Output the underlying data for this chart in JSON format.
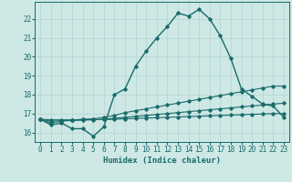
{
  "xlabel": "Humidex (Indice chaleur)",
  "background_color": "#cde8e5",
  "grid_color": "#b8d8d5",
  "line_color": "#1a6b6b",
  "xlim": [
    -0.5,
    23.5
  ],
  "ylim": [
    15.5,
    22.9
  ],
  "yticks": [
    16,
    17,
    18,
    19,
    20,
    21,
    22
  ],
  "xticks": [
    0,
    1,
    2,
    3,
    4,
    5,
    6,
    7,
    8,
    9,
    10,
    11,
    12,
    13,
    14,
    15,
    16,
    17,
    18,
    19,
    20,
    21,
    22,
    23
  ],
  "main_x": [
    0,
    1,
    2,
    3,
    4,
    5,
    6,
    7,
    8,
    9,
    10,
    11,
    12,
    13,
    14,
    15,
    16,
    17,
    18,
    19,
    20,
    21,
    22,
    23
  ],
  "main_y": [
    16.7,
    16.4,
    16.5,
    16.2,
    16.2,
    15.8,
    16.3,
    18.0,
    18.3,
    19.5,
    20.3,
    21.0,
    21.6,
    22.3,
    22.15,
    22.5,
    22.0,
    21.1,
    19.9,
    18.3,
    17.9,
    17.5,
    17.4,
    16.8
  ],
  "line2_x": [
    0,
    1,
    2,
    3,
    4,
    5,
    6,
    7,
    8,
    9,
    10,
    11,
    12,
    13,
    14,
    15,
    16,
    17,
    18,
    19,
    20,
    21,
    22,
    23
  ],
  "line2_y": [
    16.7,
    16.5,
    16.6,
    16.65,
    16.7,
    16.72,
    16.8,
    16.9,
    17.05,
    17.15,
    17.25,
    17.35,
    17.45,
    17.55,
    17.65,
    17.75,
    17.85,
    17.95,
    18.05,
    18.15,
    18.25,
    18.35,
    18.45,
    18.45
  ],
  "line3_x": [
    0,
    1,
    2,
    3,
    4,
    5,
    6,
    7,
    8,
    9,
    10,
    11,
    12,
    13,
    14,
    15,
    16,
    17,
    18,
    19,
    20,
    21,
    22,
    23
  ],
  "line3_y": [
    16.7,
    16.6,
    16.62,
    16.63,
    16.65,
    16.67,
    16.7,
    16.75,
    16.8,
    16.85,
    16.9,
    16.95,
    17.0,
    17.05,
    17.1,
    17.15,
    17.2,
    17.25,
    17.3,
    17.35,
    17.4,
    17.45,
    17.5,
    17.55
  ],
  "line4_x": [
    0,
    1,
    2,
    3,
    4,
    5,
    6,
    7,
    8,
    9,
    10,
    11,
    12,
    13,
    14,
    15,
    16,
    17,
    18,
    19,
    20,
    21,
    22,
    23
  ],
  "line4_y": [
    16.7,
    16.67,
    16.67,
    16.67,
    16.68,
    16.68,
    16.68,
    16.7,
    16.72,
    16.74,
    16.76,
    16.78,
    16.8,
    16.82,
    16.84,
    16.86,
    16.88,
    16.9,
    16.92,
    16.94,
    16.96,
    16.98,
    17.0,
    17.0
  ]
}
